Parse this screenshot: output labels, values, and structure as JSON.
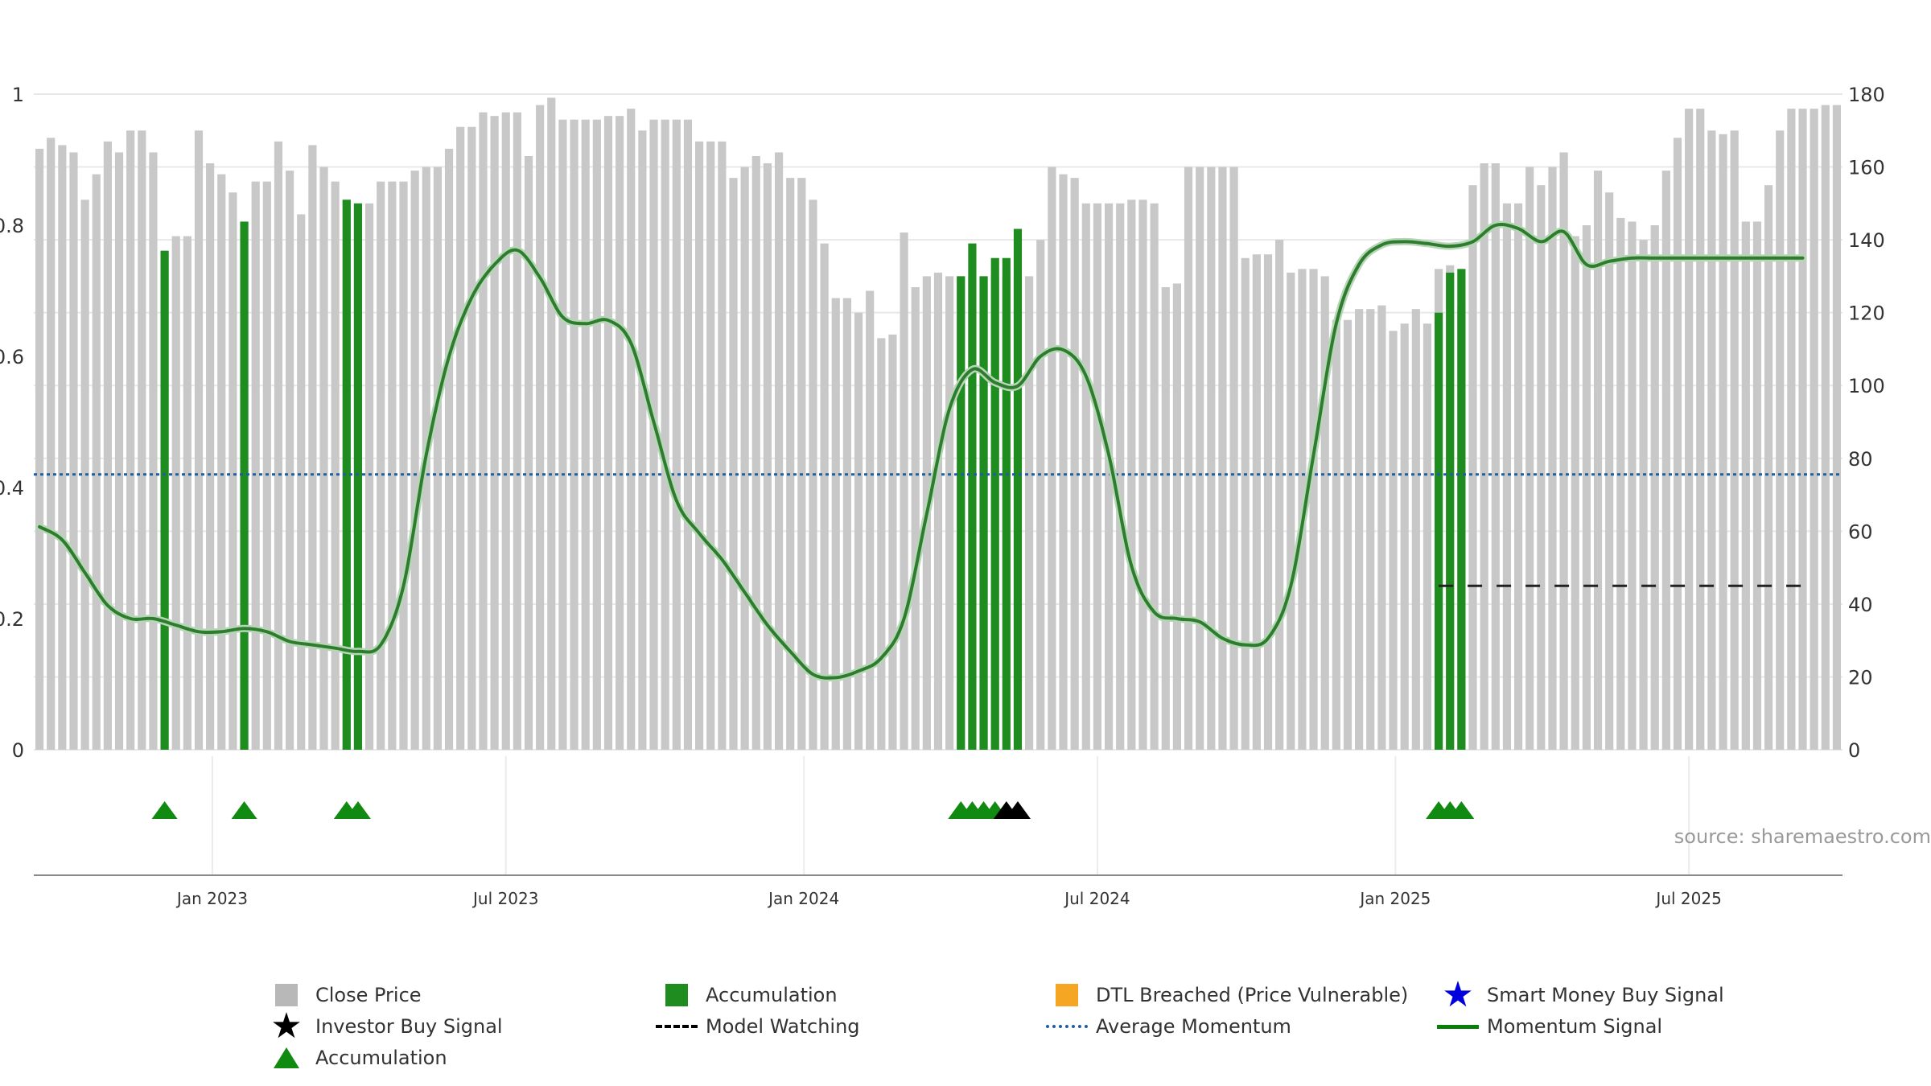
{
  "chart_data": {
    "type": "bar",
    "source": "source: sharemaestro.com",
    "left_axis": {
      "ylim": [
        0,
        1
      ],
      "ticks": [
        "0",
        "0.2",
        "0.4",
        "0.6",
        "0.8",
        "1"
      ],
      "tick_values": [
        0,
        0.2,
        0.4,
        0.6,
        0.8,
        1
      ]
    },
    "right_axis": {
      "ylim": [
        0,
        180
      ],
      "ticks": [
        "0",
        "20",
        "40",
        "60",
        "80",
        "100",
        "120",
        "140",
        "160",
        "180"
      ],
      "tick_values": [
        0,
        20,
        40,
        60,
        80,
        100,
        120,
        140,
        160,
        180
      ]
    },
    "x_axis": {
      "labels": [
        "Jan 2023",
        "Jul 2023",
        "Jan 2024",
        "Jul 2024",
        "Jan 2025",
        "Jul 2025"
      ],
      "label_weeks": [
        15.2,
        41,
        67.2,
        93,
        119.2,
        145
      ]
    },
    "close_price": [
      165,
      168,
      166,
      164,
      151,
      158,
      167,
      164,
      170,
      170,
      164,
      137,
      141,
      141,
      170,
      161,
      158,
      153,
      145,
      156,
      156,
      167,
      159,
      147,
      166,
      160,
      156,
      151,
      150,
      150,
      156,
      156,
      156,
      159,
      160,
      160,
      165,
      171,
      171,
      175,
      174,
      175,
      175,
      163,
      177,
      179,
      173,
      173,
      173,
      173,
      174,
      174,
      176,
      170,
      173,
      173,
      173,
      173,
      167,
      167,
      167,
      157,
      160,
      163,
      161,
      164,
      157,
      157,
      151,
      139,
      124,
      124,
      120,
      126,
      113,
      114,
      142,
      127,
      130,
      131,
      130,
      130,
      130,
      130,
      130,
      130,
      130,
      130,
      140,
      160,
      158,
      157,
      150,
      150,
      150,
      150,
      151,
      151,
      150,
      127,
      128,
      160,
      160,
      160,
      160,
      160,
      135,
      136,
      136,
      140,
      131,
      132,
      132,
      130,
      118,
      118,
      121,
      121,
      122,
      115,
      117,
      121,
      117,
      132,
      133,
      122,
      155,
      161,
      161,
      150,
      150,
      160,
      155,
      160,
      164,
      141,
      144,
      159,
      153,
      146,
      145,
      140,
      144,
      159,
      168,
      176,
      176,
      170,
      169,
      170,
      145,
      145,
      155,
      170,
      176,
      176,
      176,
      177,
      177
    ],
    "accumulation_bars": [
      {
        "week": 11,
        "value": 137
      },
      {
        "week": 18,
        "value": 145
      },
      {
        "week": 27,
        "value": 151
      },
      {
        "week": 28,
        "value": 150
      },
      {
        "week": 81,
        "value": 130
      },
      {
        "week": 82,
        "value": 139
      },
      {
        "week": 83,
        "value": 130
      },
      {
        "week": 84,
        "value": 135
      },
      {
        "week": 85,
        "value": 135
      },
      {
        "week": 86,
        "value": 143
      },
      {
        "week": 123,
        "value": 120
      },
      {
        "week": 124,
        "value": 131
      },
      {
        "week": 125,
        "value": 132
      }
    ],
    "momentum_signal": {
      "weeks": [
        0,
        2,
        4,
        6,
        8,
        10,
        12,
        14,
        16,
        18,
        20,
        22,
        24,
        26,
        28,
        30,
        32,
        34,
        36,
        38,
        40,
        42,
        44,
        46,
        48,
        50,
        52,
        54,
        56,
        58,
        60,
        62,
        64,
        66,
        68,
        70,
        72,
        74,
        76,
        78,
        80,
        82,
        84,
        86,
        88,
        90,
        92,
        94,
        96,
        98,
        100,
        102,
        104,
        106,
        108,
        110,
        112,
        114,
        116,
        118,
        120,
        122,
        124,
        126,
        128,
        130,
        132,
        134,
        136,
        138,
        140,
        142,
        144,
        146,
        148,
        150,
        152,
        154,
        155
      ],
      "values": [
        0.34,
        0.32,
        0.27,
        0.22,
        0.2,
        0.2,
        0.19,
        0.18,
        0.18,
        0.185,
        0.18,
        0.165,
        0.16,
        0.155,
        0.15,
        0.16,
        0.25,
        0.45,
        0.6,
        0.69,
        0.74,
        0.762,
        0.72,
        0.66,
        0.65,
        0.655,
        0.62,
        0.5,
        0.38,
        0.33,
        0.29,
        0.24,
        0.19,
        0.15,
        0.115,
        0.11,
        0.12,
        0.14,
        0.2,
        0.36,
        0.52,
        0.58,
        0.56,
        0.555,
        0.6,
        0.61,
        0.57,
        0.45,
        0.28,
        0.21,
        0.2,
        0.195,
        0.17,
        0.16,
        0.17,
        0.25,
        0.45,
        0.65,
        0.74,
        0.77,
        0.775,
        0.772,
        0.768,
        0.775,
        0.8,
        0.795,
        0.775,
        0.79,
        0.74,
        0.745,
        0.75,
        0.75,
        0.75,
        0.75,
        0.75,
        0.75,
        0.75,
        0.75,
        0.75
      ]
    },
    "average_momentum": 0.42,
    "model_watching": {
      "from_week": 123,
      "to_week": 155,
      "value": 0.25
    },
    "accumulation_markers": [
      {
        "week": 11,
        "color": "#108a10"
      },
      {
        "week": 18,
        "color": "#108a10"
      },
      {
        "week": 27,
        "color": "#108a10"
      },
      {
        "week": 28,
        "color": "#108a10"
      },
      {
        "week": 81,
        "color": "#108a10"
      },
      {
        "week": 82,
        "color": "#108a10"
      },
      {
        "week": 83,
        "color": "#108a10"
      },
      {
        "week": 84,
        "color": "#108a10"
      },
      {
        "week": 85,
        "color": "#000000"
      },
      {
        "week": 86,
        "color": "#000000"
      },
      {
        "week": 123,
        "color": "#108a10"
      },
      {
        "week": 124,
        "color": "#108a10"
      },
      {
        "week": 125,
        "color": "#108a10"
      }
    ],
    "colors": {
      "close_price": "#c8c8c8",
      "accumulation": "#1e8c1e",
      "momentum": "#2e7d2e",
      "average": "#1f5f9f",
      "grid": "#e8e8e8",
      "axis_text": "#333333"
    }
  },
  "legend": [
    {
      "label": "Close Price",
      "symbol": "square",
      "color": "#b8b8b8"
    },
    {
      "label": "Accumulation",
      "symbol": "square",
      "color": "#1e8c1e"
    },
    {
      "label": "DTL Breached (Price Vulnerable)",
      "symbol": "square",
      "color": "#f5a623"
    },
    {
      "label": "Smart Money Buy Signal",
      "symbol": "star",
      "color": "#0000dd"
    },
    {
      "label": "Investor Buy Signal",
      "symbol": "star",
      "color": "#000000"
    },
    {
      "label": "Model Watching",
      "symbol": "dash",
      "color": "#000000"
    },
    {
      "label": "Average Momentum",
      "symbol": "dot",
      "color": "#1f5f9f"
    },
    {
      "label": "Momentum Signal",
      "symbol": "line",
      "color": "#0a7d0a"
    },
    {
      "label": "Accumulation",
      "symbol": "triangle",
      "color": "#108a10"
    }
  ]
}
